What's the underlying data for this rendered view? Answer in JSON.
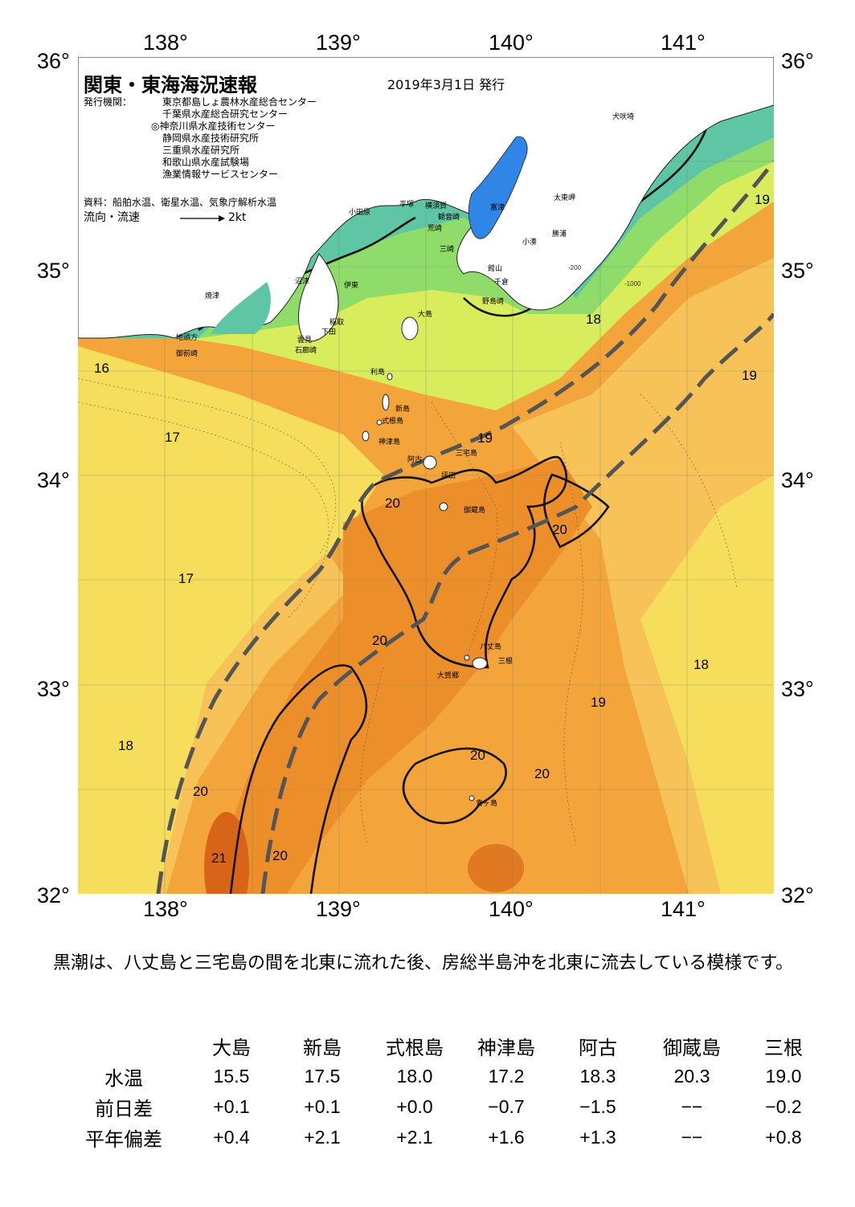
{
  "header": {
    "title": "関東・東海海況速報",
    "date": "2019年3月1日 発行",
    "publisher_label": "発行機関：",
    "publishers": [
      "東京都島しょ農林水産総合センター",
      "千葉県水産総合研究センター",
      "◎神奈川県水産技術センター",
      "静岡県水産技術研究所",
      "三重県水産研究所",
      "和歌山県水産試験場",
      "漁業情報サービスセンター"
    ],
    "sources": "資料：船舶水温、衛星水温、気象庁解析水温",
    "legend_label": "流向・流速",
    "legend_scale": "2kt"
  },
  "axes": {
    "lon_top": [
      "138°",
      "139°",
      "140°",
      "141°"
    ],
    "lon_bottom": [
      "138°",
      "139°",
      "140°",
      "141°"
    ],
    "lat_left": [
      "36°",
      "35°",
      "34°",
      "33°",
      "32°"
    ],
    "lat_right": [
      "36°",
      "35°",
      "34°",
      "33°",
      "32°"
    ]
  },
  "places": {
    "odawara": "小田原",
    "hiratsuka": "平塚",
    "yokosuka": "横須賀",
    "miyazu": "富津",
    "kannonzaki": "観音崎",
    "arasaki": "荒崎",
    "misaki": "三崎",
    "tateyama": "館山",
    "chikura": "千倉",
    "nojimazaki": "野島崎",
    "inubozaki": "犬吠埼",
    "taitomisaki": "太東岬",
    "katsuura": "勝浦",
    "kominato": "小湊",
    "numazu": "沼津",
    "ito": "伊東",
    "inatori": "稲取",
    "shimoda": "下田",
    "kumomi": "雲見",
    "irozaki": "石廊崎",
    "yaizu": "焼津",
    "jitoukata": "地頭方",
    "omaezaki": "御前崎",
    "oshima": "大島",
    "toshima": "利島",
    "niijima": "新島",
    "shikinejima": "式根島",
    "kozushima": "神津島",
    "miyakejima": "三宅島",
    "ako": "阿古",
    "tsubota": "坪田",
    "mikurajima": "御蔵島",
    "hachijojima": "八丈島",
    "mitsune": "三根",
    "okago": "大賀郷",
    "aogashima": "青ヶ島"
  },
  "isotherm_labels": {
    "t16": "16",
    "t17a": "17",
    "t17b": "17",
    "t18a": "18",
    "t18b": "18",
    "t18c": "18",
    "t19a": "19",
    "t19b": "19",
    "t19c": "19",
    "t19d": "19",
    "t20a": "20",
    "t20b": "20",
    "t20c": "20",
    "t20d": "20",
    "t20e": "20",
    "t20f": "20",
    "t20g": "20",
    "t21": "21"
  },
  "depth_labels": {
    "d200": "-200",
    "d1000": "-1000"
  },
  "colors": {
    "land": "#ffffff",
    "cold_bay": "#2f86e6",
    "cool": "#5ec6a5",
    "green": "#8fdc6a",
    "yellow_green": "#d8ec5c",
    "yellow": "#f6dd5c",
    "light_orange": "#f7c257",
    "orange": "#f3a43a",
    "deep_orange": "#ec8f2b",
    "hot": "#d8641a",
    "kuroshio_axis": "#555555"
  },
  "caption": "　黒潮は、八丈島と三宅島の間を北東に流れた後、房総半島沖を北東に流去している模様です。",
  "table": {
    "columns": [
      "大島",
      "新島",
      "式根島",
      "神津島",
      "阿古",
      "御蔵島",
      "三根"
    ],
    "rows": [
      {
        "label": "水温",
        "values": [
          "15.5",
          "17.5",
          "18.0",
          "17.2",
          "18.3",
          "20.3",
          "19.0"
        ]
      },
      {
        "label": "前日差",
        "values": [
          "+0.1",
          "+0.1",
          "+0.0",
          "−0.7",
          "−1.5",
          "−−",
          "−0.2"
        ]
      },
      {
        "label": "平年偏差",
        "values": [
          "+0.4",
          "+2.1",
          "+2.1",
          "+1.6",
          "+1.3",
          "−−",
          "+0.8"
        ]
      }
    ]
  }
}
